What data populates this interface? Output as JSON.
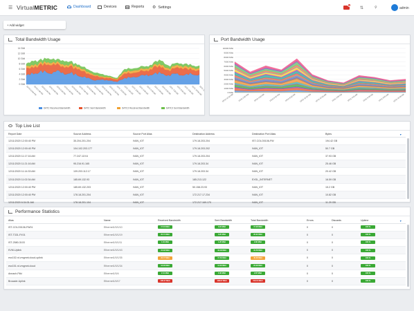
{
  "nav": {
    "logo_light": "Virtual",
    "logo_bold": "METRIC",
    "items": [
      "Dashboard",
      "Devices",
      "Reports",
      "Settings"
    ],
    "alert_count": "2",
    "user": "admin"
  },
  "toolbar": {
    "add_widget": "+ Add widget"
  },
  "total_bw": {
    "title": "Total Bandwidth Usage",
    "ylabels": [
      "14 Gbit",
      "12 Gbit",
      "10 Gbit",
      "8 Gbit",
      "6 Gbit",
      "4 Gbit",
      "2 Gbit",
      "0 Gbit"
    ],
    "xlabels": [
      "12/10 12:00 PM",
      "12/10 1:00 PM",
      "12/10 2:00 PM",
      "12/10 3:00 PM",
      "12/10 4:00 PM",
      "12/10 5:00 PM",
      "12/10 6:00 PM",
      "12/10 7:00 PM",
      "12/10 8:00 PM",
      "12/10 9:00 PM",
      "12/10 10:00 PM",
      "12/10 11:00 PM",
      "12/11 12:00 AM",
      "12/11 1:00 AM",
      "12/11 2:00 AM",
      "12/11 3:00 AM",
      "12/11 4:00 AM",
      "12/11 5:00 AM",
      "12/11 6:00 AM",
      "12/11 7:00 AM",
      "12/11 8:00 AM",
      "12/11 9:00 AM",
      "12/11 10:00 AM",
      "12/11 11:00 AM"
    ],
    "legend": [
      "DATC Received Bandwidth",
      "DATC Sent Bandwidth",
      "DATC2 Received Bandwidth",
      "DATC2 Sent Bandwidth"
    ],
    "colors": [
      "#4a90e2",
      "#e8542c",
      "#f0a130",
      "#6cbf4a"
    ]
  },
  "port_bw": {
    "title": "Port Bandwidth Usage",
    "ylabels": [
      "10000 Mbit",
      "9000 Mbit",
      "8000 Mbit",
      "7000 Mbit",
      "6000 Mbit",
      "5000 Mbit",
      "4000 Mbit",
      "3000 Mbit",
      "2000 Mbit",
      "1000 Mbit",
      "0 Mbit"
    ],
    "xlabels": [
      "12/10 12:00 PM",
      "12/10 2:00 PM",
      "12/10 4:00 PM",
      "12/10 6:00 PM",
      "12/10 8:00 PM",
      "12/10 10:00 PM",
      "12/11 12:00 AM",
      "12/11 2:00 AM",
      "12/11 4:00 AM",
      "12/11 6:00 AM",
      "12/11 8:00 AM",
      "12/11 10:00 AM"
    ]
  },
  "chart_data": [
    {
      "type": "area",
      "title": "Total Bandwidth Usage",
      "ylim": [
        0,
        14
      ],
      "x": [
        "12/10 12:00 PM",
        "12/10 1:00 PM",
        "12/10 2:00 PM",
        "12/10 3:00 PM",
        "12/10 4:00 PM",
        "12/10 5:00 PM",
        "12/10 6:00 PM",
        "12/10 7:00 PM",
        "12/10 8:00 PM",
        "12/10 9:00 PM",
        "12/10 10:00 PM",
        "12/10 11:00 PM",
        "12/11 12:00 AM",
        "12/11 1:00 AM",
        "12/11 2:00 AM",
        "12/11 3:00 AM",
        "12/11 4:00 AM",
        "12/11 5:00 AM",
        "12/11 6:00 AM",
        "12/11 7:00 AM",
        "12/11 8:00 AM",
        "12/11 9:00 AM",
        "12/11 10:00 AM",
        "12/11 11:00 AM"
      ],
      "series": [
        {
          "name": "DATC Received Bandwidth",
          "values": [
            4,
            5,
            6,
            5,
            6,
            5,
            5,
            4,
            3,
            2,
            2,
            2,
            1,
            3,
            3,
            4,
            4,
            5,
            5,
            4,
            5,
            4,
            5,
            4
          ]
        },
        {
          "name": "DATC Sent Bandwidth",
          "values": [
            3,
            3,
            3,
            4,
            3,
            3,
            3,
            3,
            2,
            2,
            1,
            1,
            1,
            2,
            2,
            2,
            2,
            3,
            3,
            2,
            3,
            3,
            2,
            2
          ]
        },
        {
          "name": "DATC2 Received Bandwidth",
          "values": [
            1,
            1,
            1,
            1,
            1,
            1,
            1,
            1,
            1,
            0.5,
            0.5,
            0.5,
            0.3,
            1,
            1,
            1,
            1,
            1,
            1,
            1,
            1,
            1,
            1,
            1
          ]
        },
        {
          "name": "DATC2 Sent Bandwidth",
          "values": [
            1,
            2,
            1,
            2,
            1,
            2,
            1,
            1,
            1,
            1,
            1,
            0.5,
            0.3,
            1,
            1,
            1,
            1,
            1,
            2,
            1,
            1,
            1,
            1,
            1
          ]
        }
      ]
    },
    {
      "type": "area",
      "title": "Port Bandwidth Usage",
      "ylim": [
        0,
        10000
      ],
      "x": [
        "12/10 12:00 PM",
        "12/10 2:00 PM",
        "12/10 4:00 PM",
        "12/10 6:00 PM",
        "12/10 8:00 PM",
        "12/10 10:00 PM",
        "12/11 12:00 AM",
        "12/11 2:00 AM",
        "12/11 4:00 AM",
        "12/11 6:00 AM",
        "12/11 8:00 AM",
        "12/11 10:00 AM"
      ],
      "totals": [
        6600,
        4400,
        5800,
        4900,
        7200,
        3900,
        2600,
        2100,
        3700,
        3300,
        2600,
        2900
      ]
    }
  ],
  "top_live": {
    "title": "Top Live List",
    "columns": [
      "Report Date",
      "Source Address",
      "Source Port Alias",
      "Destination Address",
      "Destination Port Alias",
      "Bytes"
    ],
    "rows": [
      [
        "12/11/2020 12:00:40 PM",
        "35.204.201.204",
        "IVAN_IOT",
        "179.18.203.204",
        "IST-COLO0106-FW",
        "194.42 GB"
      ],
      [
        "12/11/2020 12:00:40 PM",
        "104.102.203.177",
        "IVAN_IOT",
        "179.18.203.202",
        "IVAN_IOT",
        "50.7 GB"
      ],
      [
        "12/11/2020 11:17:16 AM",
        "77.247.119.6",
        "IVAN_IOT",
        "179.18.203.204",
        "IVAN_IOT",
        "37.93 GB"
      ],
      [
        "12/11/2020 11:21:16 AM",
        "95.216.91.165",
        "IVAN_IOT",
        "179.18.203.34",
        "IVAN_IOT",
        "25.46 GB"
      ],
      [
        "12/11/2020 11:14:33 AM",
        "109.203.112.17",
        "IVAN_IOT",
        "179.18.203.34",
        "IVAN_IOT",
        "20.42 GB"
      ],
      [
        "12/11/2020 11:02:34 AM",
        "185.69.132.93",
        "IVAN_IOT",
        "185.213.122",
        "EXSL_INTERNET",
        "16.59 GB"
      ],
      [
        "12/11/2020 12:00:40 PM",
        "185.69.132.203",
        "IVAN_IOT",
        "50.158.23.93",
        "IVAN_IOT",
        "15.2 GB"
      ],
      [
        "12/11/2020 12:00:40 PM",
        "178.18.201.204",
        "IVAN_IOT",
        "172.217.17.234",
        "IVAN_IOT",
        "10.82 GB"
      ],
      [
        "12/11/2020 6:34:31 AM",
        "178.18.201.104",
        "IVAN_IOT",
        "172.217.169.170",
        "IVAN_IOT",
        "11.29 GB"
      ]
    ]
  },
  "perf": {
    "title": "Performance Statistics",
    "columns": [
      "Alias",
      "Name",
      "Received Bandwidth",
      "Sent Bandwidth",
      "Total Bandwidth",
      "Errors",
      "Discards",
      "Uptime"
    ],
    "rows": [
      {
        "alias": "IST-COLO0106-FW01",
        "name": "Ethernet1/0/1/10",
        "rx": "17.04 Mbit",
        "rxc": "green",
        "tx": "0.23 Mbit",
        "txc": "green",
        "tot": "17.26 Mbit",
        "totc": "green",
        "err": "0",
        "dis": "0",
        "up": "100 %"
      },
      {
        "alias": "IST-T331-FX01",
        "name": "Ethernet1/0/1/19",
        "rx": "20.71 Mbit",
        "rxc": "green",
        "tx": "0.20 Mbit",
        "txc": "green",
        "tot": "20.91 Mbit",
        "totc": "green",
        "err": "0",
        "dis": "0",
        "up": "100 %"
      },
      {
        "alias": "IST-2580-3103",
        "name": "Ethernet1/0/1/11",
        "rx": "1.64 Mbit",
        "rxc": "green",
        "tx": "1.26 Mbit",
        "txc": "green",
        "tot": "2.90 Mbit",
        "totc": "green",
        "err": "0",
        "dis": "0",
        "up": "100 %"
      },
      {
        "alias": "KVM-Uplink",
        "name": "Ethernet1/0/1/43",
        "rx": "15.02 Mbit",
        "rxc": "green",
        "tx": "16.48 Mbit",
        "txc": "green",
        "tot": "31.50 Mbit",
        "totc": "green",
        "err": "0",
        "dis": "0",
        "up": "100 %"
      },
      {
        "alias": "esx152.rd.vmgmnt.cloud-uplink",
        "name": "Ethernet1/0/1/35",
        "rx": "22.77 Mbit",
        "rxc": "orange",
        "tx": "17.53 Mbit",
        "txc": "green",
        "tot": "40.30 Mbit",
        "totc": "orange",
        "err": "0",
        "dis": "0",
        "up": "100 %"
      },
      {
        "alias": "esx151.rd.vmgmnt.cloud",
        "name": "Ethernet1/0/1/34",
        "rx": "13.00 Mbit",
        "rxc": "green",
        "tx": "11.29 Mbit",
        "txc": "green",
        "tot": "24.29 Mbit",
        "totc": "green",
        "err": "0",
        "dis": "0",
        "up": "100 %"
      },
      {
        "alias": "Annach-Fiiki",
        "name": "Ethernet1/0/4",
        "rx": "2.41 Mbit",
        "rxc": "green",
        "tx": "0.46 Mbit",
        "txc": "green",
        "tot": "2.87 Mbit",
        "totc": "green",
        "err": "0",
        "dis": "0",
        "up": "100 %"
      },
      {
        "alias": "Brocade-Uplink",
        "name": "Ethernet1/0/17",
        "rx": "108.47 Mbit",
        "rxc": "red",
        "tx": "408.07 Mbit",
        "txc": "red",
        "tot": "516.54 Mbit",
        "totc": "red",
        "err": "0",
        "dis": "0",
        "up": "100 %"
      }
    ]
  }
}
